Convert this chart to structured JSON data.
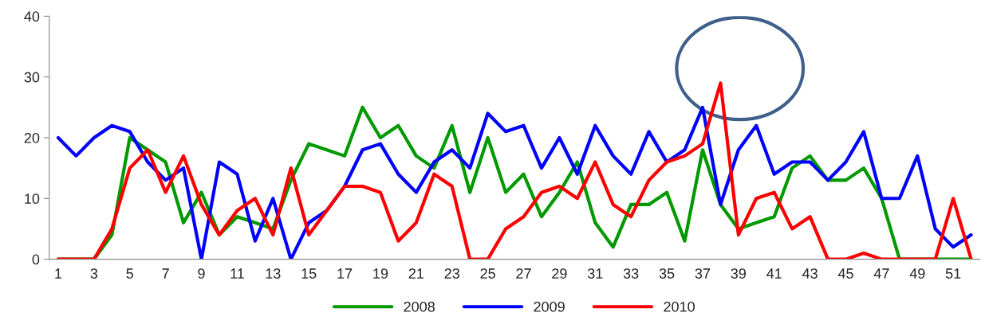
{
  "chart_data": {
    "type": "line",
    "categories": [
      "1",
      null,
      "3",
      null,
      "5",
      null,
      "7",
      null,
      "9",
      null,
      "11",
      null,
      "13",
      null,
      "15",
      null,
      "17",
      null,
      "19",
      null,
      "21",
      null,
      "23",
      null,
      "25",
      null,
      "27",
      null,
      "29",
      null,
      "31",
      null,
      "33",
      null,
      "35",
      null,
      "37",
      null,
      "39",
      null,
      "41",
      null,
      "43",
      null,
      "45",
      null,
      "47",
      null,
      "49",
      null,
      "51",
      null
    ],
    "series": [
      {
        "name": "2008",
        "color": "#009900",
        "values": [
          0,
          0,
          0,
          4,
          20,
          18,
          16,
          6,
          11,
          4,
          7,
          6,
          5,
          13,
          19,
          18,
          17,
          25,
          20,
          22,
          17,
          15,
          22,
          11,
          20,
          11,
          14,
          7,
          11,
          16,
          6,
          2,
          9,
          9,
          11,
          3,
          18,
          9,
          5,
          6,
          7,
          15,
          17,
          13,
          13,
          15,
          10,
          0,
          0,
          0,
          0,
          0
        ]
      },
      {
        "name": "2009",
        "color": "#0000ff",
        "values": [
          20,
          17,
          20,
          22,
          21,
          16,
          13,
          15,
          0,
          16,
          14,
          3,
          10,
          0,
          6,
          8,
          12,
          18,
          19,
          14,
          11,
          16,
          18,
          15,
          24,
          21,
          22,
          15,
          20,
          14,
          22,
          17,
          14,
          21,
          16,
          18,
          25,
          9,
          18,
          22,
          14,
          16,
          16,
          13,
          16,
          21,
          10,
          10,
          17,
          5,
          2,
          4
        ]
      },
      {
        "name": "2010",
        "color": "#ff0000",
        "values": [
          0,
          0,
          0,
          5,
          15,
          18,
          11,
          17,
          9,
          4,
          8,
          10,
          4,
          15,
          4,
          8,
          12,
          12,
          11,
          3,
          6,
          14,
          12,
          0,
          0,
          5,
          7,
          11,
          12,
          10,
          16,
          9,
          7,
          13,
          16,
          17,
          19,
          29,
          4,
          10,
          11,
          5,
          7,
          0,
          0,
          1,
          0,
          0,
          0,
          0,
          10,
          0
        ]
      }
    ],
    "ylim": [
      0,
      40
    ],
    "yticks": [
      0,
      10,
      20,
      30,
      40
    ],
    "grid": false,
    "legend": "bottom",
    "marker": "none",
    "line_style": "solid"
  }
}
